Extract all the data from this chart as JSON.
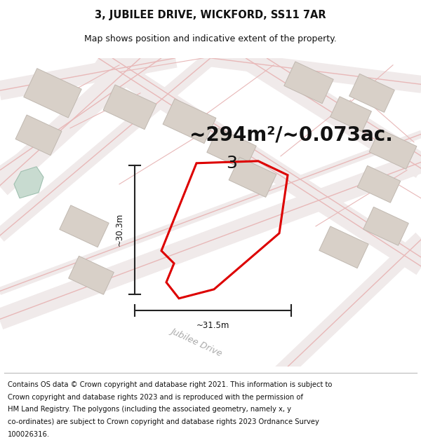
{
  "title_line1": "3, JUBILEE DRIVE, WICKFORD, SS11 7AR",
  "title_line2": "Map shows position and indicative extent of the property.",
  "area_text": "~294m²/~0.073ac.",
  "dim_width": "~31.5m",
  "dim_height": "~30.3m",
  "plot_number": "3",
  "footer_lines": [
    "Contains OS data © Crown copyright and database right 2021. This information is subject to",
    "Crown copyright and database rights 2023 and is reproduced with the permission of",
    "HM Land Registry. The polygons (including the associated geometry, namely x, y",
    "co-ordinates) are subject to Crown copyright and database rights 2023 Ordnance Survey",
    "100026316."
  ],
  "map_bg_color": "#f8f6f4",
  "road_line_color": "#e8b8b8",
  "road_fill_color": "#f2ecec",
  "building_color": "#d8d0c8",
  "building_edge_color": "#c0b8b0",
  "plot_outline_color": "#dd0000",
  "dim_line_color": "#222222",
  "street_label": "Jubilee Drive",
  "street_label_color": "#aaaaaa",
  "pond_color": "#c8dbd0",
  "pond_edge_color": "#a0c0b0",
  "title_fontsize": 10.5,
  "subtitle_fontsize": 9,
  "area_fontsize": 20,
  "plot_label_fontsize": 18,
  "dim_fontsize": 8.5,
  "footer_fontsize": 7.2,
  "street_fontsize": 9
}
